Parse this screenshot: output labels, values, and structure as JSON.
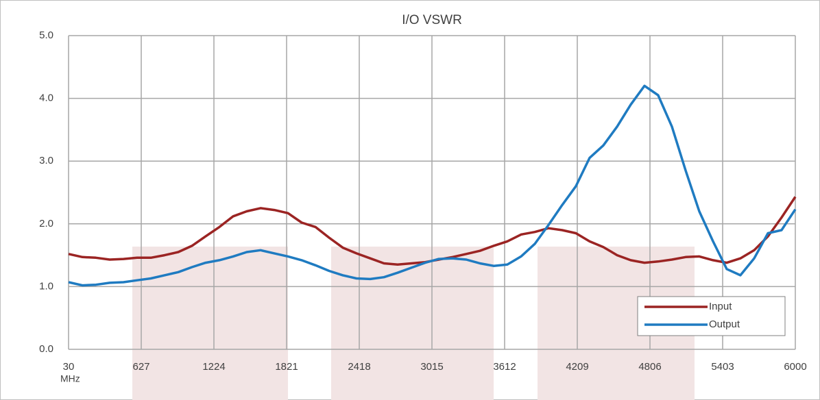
{
  "chart_data": {
    "type": "line",
    "title": "I/O VSWR",
    "x_label": "MHz",
    "x": [
      30,
      143,
      255,
      368,
      481,
      593,
      706,
      818,
      931,
      1044,
      1156,
      1269,
      1382,
      1494,
      1607,
      1720,
      1832,
      1945,
      2058,
      2170,
      2283,
      2395,
      2508,
      2621,
      2733,
      2846,
      2959,
      3071,
      3184,
      3297,
      3409,
      3522,
      3634,
      3747,
      3860,
      3972,
      4085,
      4198,
      4310,
      4423,
      4536,
      4648,
      4761,
      4873,
      4986,
      5099,
      5211,
      5324,
      5437,
      5549,
      5662,
      5775,
      5887,
      6000
    ],
    "series": [
      {
        "name": "Input",
        "color": "#9b2423",
        "values": [
          1.52,
          1.47,
          1.46,
          1.43,
          1.44,
          1.46,
          1.46,
          1.5,
          1.55,
          1.65,
          1.8,
          1.95,
          2.12,
          2.2,
          2.25,
          2.22,
          2.17,
          2.02,
          1.95,
          1.78,
          1.62,
          1.53,
          1.45,
          1.37,
          1.35,
          1.37,
          1.39,
          1.43,
          1.47,
          1.52,
          1.57,
          1.65,
          1.72,
          1.83,
          1.87,
          1.93,
          1.9,
          1.85,
          1.72,
          1.63,
          1.5,
          1.42,
          1.38,
          1.4,
          1.43,
          1.47,
          1.48,
          1.42,
          1.38,
          1.45,
          1.58,
          1.8,
          2.1,
          2.43
        ]
      },
      {
        "name": "Output",
        "color": "#1f7bc1",
        "values": [
          1.07,
          1.02,
          1.03,
          1.06,
          1.07,
          1.1,
          1.13,
          1.18,
          1.23,
          1.31,
          1.38,
          1.42,
          1.48,
          1.55,
          1.58,
          1.53,
          1.48,
          1.42,
          1.34,
          1.25,
          1.18,
          1.13,
          1.12,
          1.15,
          1.22,
          1.3,
          1.38,
          1.44,
          1.45,
          1.43,
          1.37,
          1.33,
          1.35,
          1.48,
          1.68,
          1.98,
          2.3,
          2.6,
          3.05,
          3.25,
          3.55,
          3.9,
          4.2,
          4.05,
          3.55,
          2.85,
          2.2,
          1.72,
          1.28,
          1.18,
          1.45,
          1.85,
          1.9,
          2.23
        ]
      }
    ],
    "xlim": [
      30,
      6000
    ],
    "xticks": [
      30,
      627,
      1224,
      1821,
      2418,
      3015,
      3612,
      4209,
      4806,
      5403,
      6000
    ],
    "ylim": [
      0,
      5
    ],
    "yticks": [
      {
        "value": 0,
        "label": "0.0"
      },
      {
        "value": 1,
        "label": "1.0"
      },
      {
        "value": 2,
        "label": "2.0"
      },
      {
        "value": 3,
        "label": "3.0"
      },
      {
        "value": 4,
        "label": "4.0"
      },
      {
        "value": 5,
        "label": "5.0"
      }
    ],
    "grid": true,
    "legend": "lower right"
  }
}
